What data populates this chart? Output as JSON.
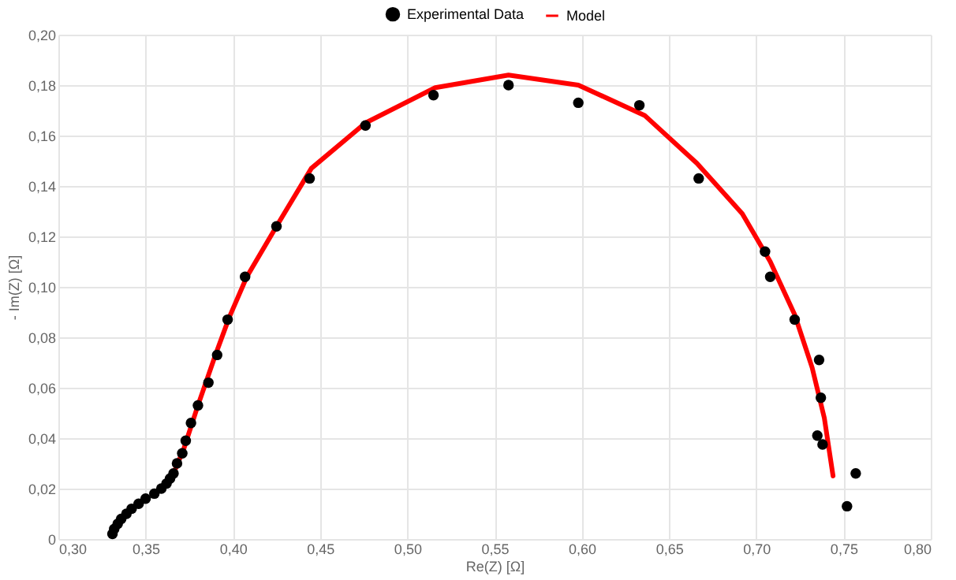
{
  "chart_data": {
    "type": "scatter",
    "xlabel": "Re(Z) [Ω]",
    "ylabel": "- Im(Z) [Ω]",
    "xlim": [
      0.3,
      0.8
    ],
    "xticks": [
      {
        "value": 0.3,
        "label": "0,30"
      },
      {
        "value": 0.35,
        "label": "0,35"
      },
      {
        "value": 0.4,
        "label": "0,40"
      },
      {
        "value": 0.45,
        "label": "0,45"
      },
      {
        "value": 0.5,
        "label": "0,50"
      },
      {
        "value": 0.55,
        "label": "0,55"
      },
      {
        "value": 0.6,
        "label": "0,60"
      },
      {
        "value": 0.65,
        "label": "0,65"
      },
      {
        "value": 0.7,
        "label": "0,70"
      },
      {
        "value": 0.75,
        "label": "0,75"
      },
      {
        "value": 0.8,
        "label": "0,80"
      }
    ],
    "ylim": [
      0,
      0.2
    ],
    "yticks": [
      0,
      {
        "value": 0.02,
        "label": "0,02"
      },
      {
        "value": 0.04,
        "label": "0,04"
      },
      {
        "value": 0.06,
        "label": "0,06"
      },
      {
        "value": 0.08,
        "label": "0,08"
      },
      {
        "value": 0.1,
        "label": "0,10"
      },
      {
        "value": 0.12,
        "label": "0,12"
      },
      {
        "value": 0.14,
        "label": "0,14"
      },
      {
        "value": 0.16,
        "label": "0,16"
      },
      {
        "value": 0.18,
        "label": "0,18"
      },
      {
        "value": 0.2,
        "label": "0,20"
      }
    ],
    "grid": true,
    "legend": "top",
    "series": [
      {
        "name": "Experimental Data",
        "marker": "circle",
        "color": "#000000",
        "x": [
          0.331,
          0.332,
          0.334,
          0.336,
          0.339,
          0.342,
          0.346,
          0.35,
          0.355,
          0.359,
          0.362,
          0.364,
          0.366,
          0.368,
          0.371,
          0.373,
          0.376,
          0.38,
          0.386,
          0.391,
          0.397,
          0.407,
          0.425,
          0.444,
          0.476,
          0.515,
          0.558,
          0.598,
          0.633,
          0.667,
          0.705,
          0.708,
          0.722,
          0.736,
          0.737,
          0.735,
          0.738,
          0.757,
          0.752
        ],
        "values": [
          0.002,
          0.004,
          0.006,
          0.008,
          0.01,
          0.012,
          0.014,
          0.016,
          0.018,
          0.02,
          0.022,
          0.024,
          0.026,
          0.03,
          0.034,
          0.039,
          0.046,
          0.053,
          0.062,
          0.073,
          0.087,
          0.104,
          0.124,
          0.143,
          0.164,
          0.176,
          0.18,
          0.173,
          0.172,
          0.143,
          0.114,
          0.104,
          0.087,
          0.071,
          0.056,
          0.041,
          0.0375,
          0.026,
          0.013
        ]
      },
      {
        "name": "Model",
        "type": "line",
        "color": "#ff0000",
        "x": [
          0.366,
          0.372,
          0.38,
          0.39,
          0.398,
          0.408,
          0.425,
          0.445,
          0.476,
          0.516,
          0.558,
          0.598,
          0.636,
          0.666,
          0.692,
          0.708,
          0.722,
          0.732,
          0.739,
          0.744
        ],
        "values": [
          0.026,
          0.036,
          0.053,
          0.073,
          0.088,
          0.104,
          0.124,
          0.147,
          0.165,
          0.179,
          0.184,
          0.18,
          0.168,
          0.149,
          0.129,
          0.11,
          0.089,
          0.068,
          0.048,
          0.025
        ]
      }
    ]
  }
}
